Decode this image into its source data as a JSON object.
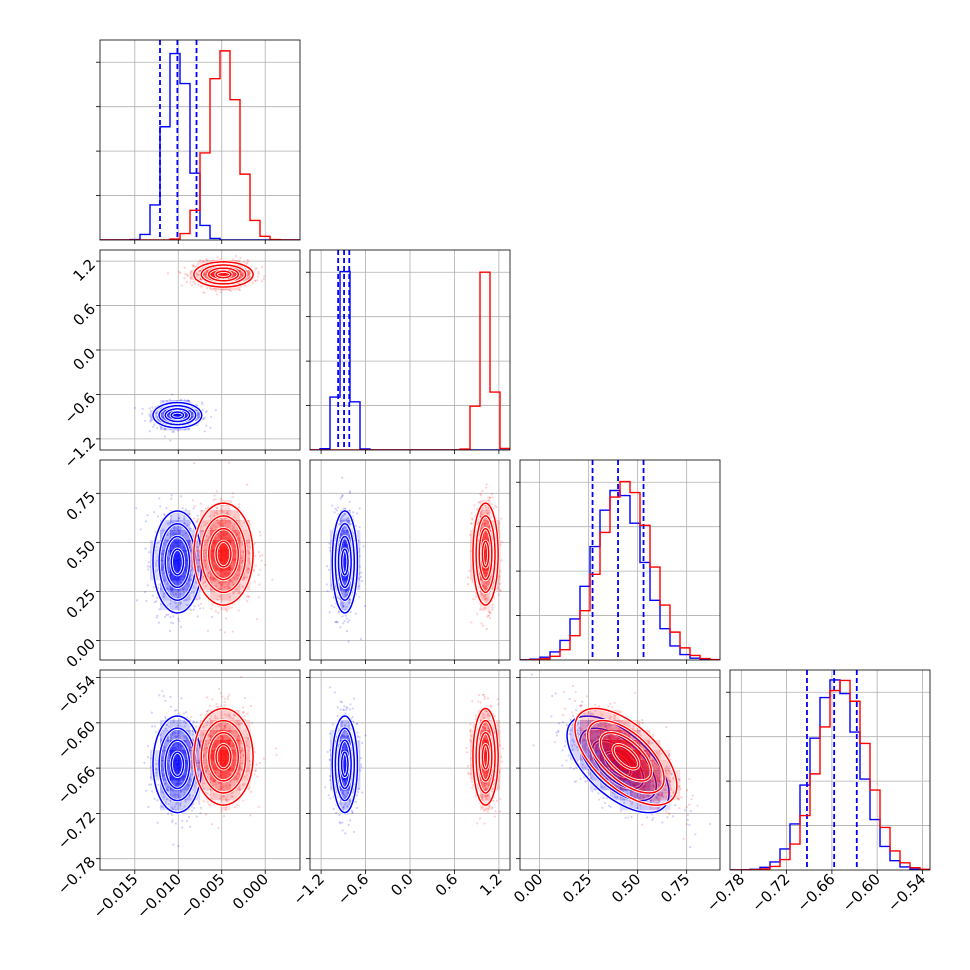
{
  "chart_data": {
    "type": "corner",
    "colors": {
      "series_a": "#0000ff",
      "series_b": "#ff0000"
    },
    "parameters": [
      {
        "range": [
          -0.019,
          0.004
        ],
        "ticks": [
          -0.015,
          -0.01,
          -0.005,
          0.0
        ],
        "tick_labels": [
          "−0.015",
          "−0.010",
          "−0.005",
          "0.000"
        ]
      },
      {
        "range": [
          -1.35,
          1.35
        ],
        "ticks": [
          -1.2,
          -0.6,
          0.0,
          0.6,
          1.2
        ],
        "tick_labels": [
          "−1.2",
          "−0.6",
          "0.0",
          "0.6",
          "1.2"
        ]
      },
      {
        "range": [
          -0.1,
          0.92
        ],
        "ticks": [
          0.0,
          0.25,
          0.5,
          0.75
        ],
        "tick_labels": [
          "0.00",
          "0.25",
          "0.50",
          "0.75"
        ]
      },
      {
        "range": [
          -0.795,
          -0.53
        ],
        "ticks": [
          -0.78,
          -0.72,
          -0.66,
          -0.6,
          -0.54
        ],
        "tick_labels": [
          "−0.78",
          "−0.72",
          "−0.66",
          "−0.60",
          "−0.54"
        ]
      }
    ],
    "series": [
      {
        "name": "",
        "color": "#0000ff",
        "means": [
          -0.0101,
          -0.88,
          0.4,
          -0.655
        ],
        "sds": [
          0.0014,
          0.085,
          0.13,
          0.032
        ],
        "correlations": [
          [
            2,
            3,
            -0.6
          ]
        ],
        "quantiles": [
          [
            -0.0121,
            -0.0101,
            -0.0079
          ],
          [
            -0.97,
            -0.89,
            -0.82
          ],
          [
            0.27,
            0.4,
            0.53
          ],
          [
            -0.693,
            -0.657,
            -0.627
          ]
        ],
        "hist_peak_frac": [
          0.98,
          0.92,
          0.88,
          0.98
        ]
      },
      {
        "name": "",
        "color": "#ff0000",
        "means": [
          -0.0048,
          1.02,
          0.44,
          -0.645
        ],
        "sds": [
          0.0017,
          0.085,
          0.13,
          0.032
        ],
        "correlations": [
          [
            2,
            3,
            -0.6
          ]
        ],
        "quantiles": [],
        "hist_peak_frac": [
          0.98,
          0.92,
          0.92,
          0.98
        ]
      }
    ]
  }
}
